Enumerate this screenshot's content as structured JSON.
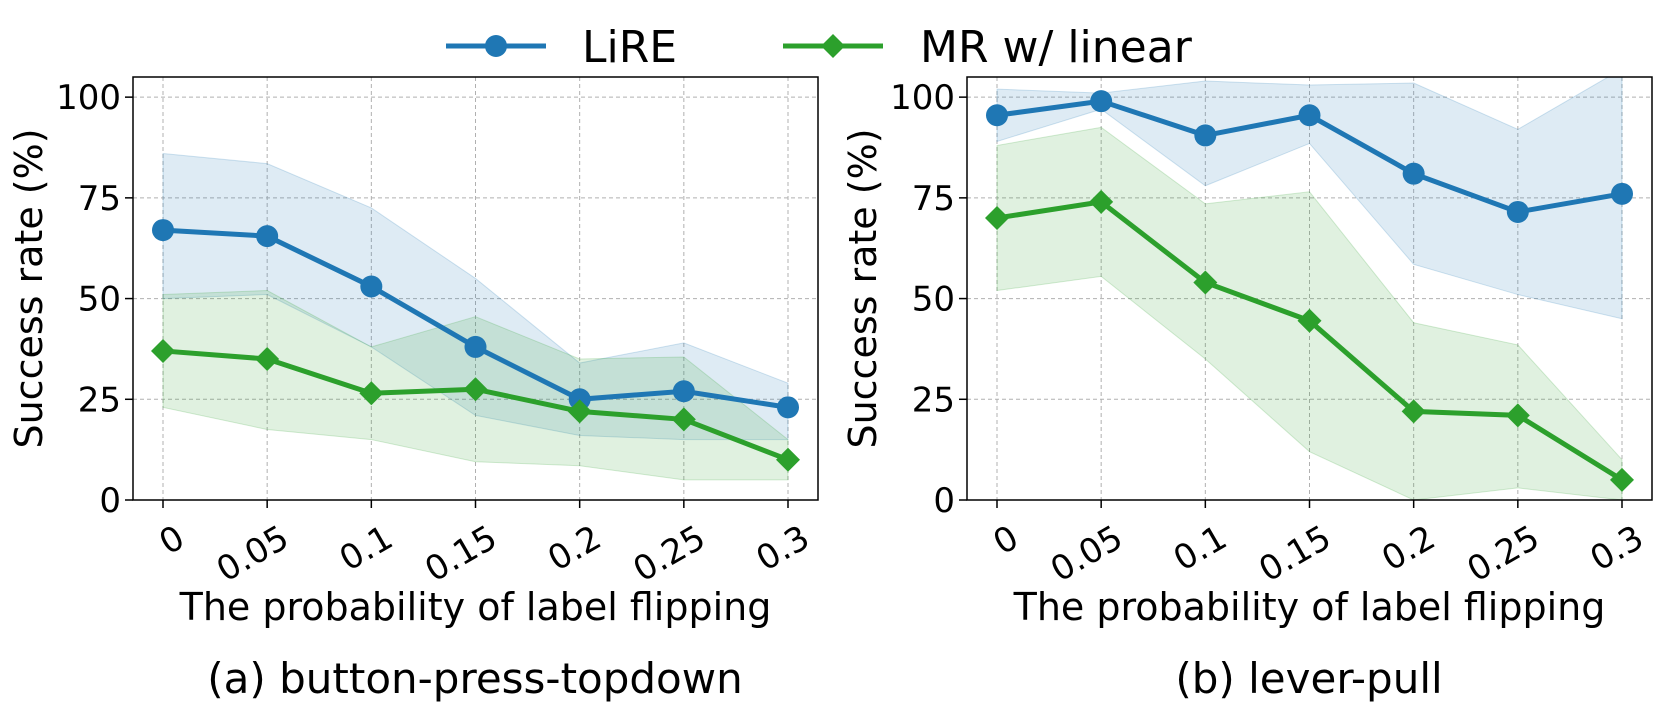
{
  "legend": {
    "items": [
      {
        "label": "LiRE",
        "color": "#1f77b4",
        "marker": "circle"
      },
      {
        "label": "MR w/ linear",
        "color": "#2ca02c",
        "marker": "diamond"
      }
    ]
  },
  "chart_data": [
    {
      "type": "line",
      "caption": "(a) button-press-topdown",
      "xlabel": "The probability of label flipping",
      "ylabel": "Success rate (%)",
      "categories": [
        "0",
        "0.05",
        "0.1",
        "0.15",
        "0.2",
        "0.25",
        "0.3"
      ],
      "ylim": [
        0,
        105
      ],
      "yticks": [
        0,
        25,
        50,
        75,
        100
      ],
      "grid": true,
      "series": [
        {
          "name": "LiRE",
          "color": "#1f77b4",
          "marker": "circle",
          "values": [
            67,
            65.5,
            53,
            38,
            25,
            27,
            23
          ],
          "band_lower": [
            50,
            51,
            38,
            21,
            16,
            15,
            15
          ],
          "band_upper": [
            86,
            83.5,
            72.5,
            55,
            34,
            39,
            29
          ]
        },
        {
          "name": "MR w/ linear",
          "color": "#2ca02c",
          "marker": "diamond",
          "values": [
            37,
            35,
            26.5,
            27.5,
            22,
            20,
            10
          ],
          "band_lower": [
            23,
            17.5,
            15,
            9.5,
            8.5,
            5,
            5
          ],
          "band_upper": [
            51,
            52,
            38,
            45.5,
            35,
            35.5,
            15
          ]
        }
      ]
    },
    {
      "type": "line",
      "caption": "(b) lever-pull",
      "xlabel": "The probability of label flipping",
      "ylabel": "Success rate (%)",
      "categories": [
        "0",
        "0.05",
        "0.1",
        "0.15",
        "0.2",
        "0.25",
        "0.3"
      ],
      "ylim": [
        0,
        105
      ],
      "yticks": [
        0,
        25,
        50,
        75,
        100
      ],
      "grid": true,
      "series": [
        {
          "name": "LiRE",
          "color": "#1f77b4",
          "marker": "circle",
          "values": [
            95.5,
            99,
            90.5,
            95.5,
            81,
            71.5,
            76
          ],
          "band_lower": [
            89,
            97,
            78,
            88.5,
            58.5,
            51,
            45
          ],
          "band_upper": [
            102,
            101,
            104,
            103,
            103.5,
            92,
            107
          ]
        },
        {
          "name": "MR w/ linear",
          "color": "#2ca02c",
          "marker": "diamond",
          "values": [
            70,
            74,
            54,
            44.5,
            22,
            21,
            5
          ],
          "band_lower": [
            52,
            55.5,
            35,
            12,
            0,
            3,
            0
          ],
          "band_upper": [
            88,
            92.5,
            73.5,
            76.5,
            44,
            38.5,
            10
          ]
        }
      ]
    }
  ]
}
